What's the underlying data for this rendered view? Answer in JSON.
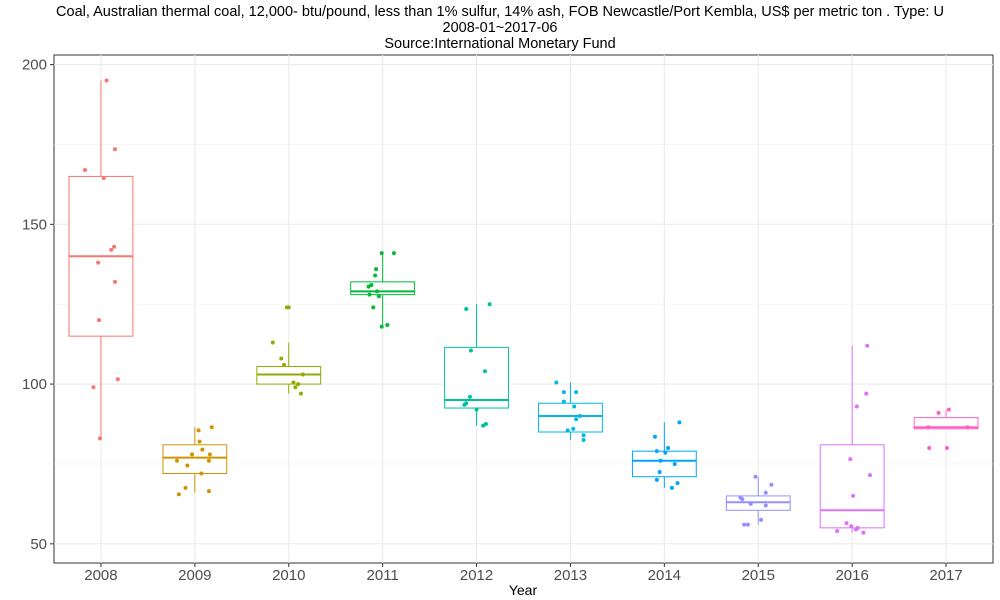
{
  "chart_data": {
    "type": "boxplot",
    "title": "Coal, Australian thermal coal, 12,000- btu/pound, less than 1% sulfur, 14% ash, FOB Newcastle/Port Kembla, US$ per metric ton . Type: U",
    "subtitle_line1": "2008-01~2017-06",
    "subtitle_line2": "Source:International Monetary Fund",
    "xlabel": "Year",
    "ylabel": "",
    "ylim": [
      44,
      203
    ],
    "yticks": [
      50,
      100,
      150,
      200
    ],
    "grid": true,
    "categories": [
      "2008",
      "2009",
      "2010",
      "2011",
      "2012",
      "2013",
      "2014",
      "2015",
      "2016",
      "2017"
    ],
    "colors": [
      "#F8766D",
      "#D39200",
      "#93AA00",
      "#00BA38",
      "#00C19F",
      "#00B9E3",
      "#00A5FF",
      "#9590FF",
      "#DB72FB",
      "#FF61C3"
    ],
    "boxes": [
      {
        "q1": 115,
        "median": 140,
        "q3": 165,
        "whisker_low": 83,
        "whisker_high": 195,
        "points": [
          [
            0.06,
            195
          ],
          [
            0.15,
            173.5
          ],
          [
            0.03,
            164.5
          ],
          [
            -0.17,
            167
          ],
          [
            0.14,
            143
          ],
          [
            0.11,
            142
          ],
          [
            -0.03,
            138
          ],
          [
            0.15,
            132
          ],
          [
            -0.02,
            120
          ],
          [
            0.18,
            101.5
          ],
          [
            -0.08,
            99
          ],
          [
            -0.01,
            83
          ]
        ]
      },
      {
        "q1": 72,
        "median": 77,
        "q3": 81,
        "whisker_low": 66,
        "whisker_high": 86.5,
        "points": [
          [
            0.18,
            86.5
          ],
          [
            0.04,
            85.5
          ],
          [
            0.05,
            82
          ],
          [
            -0.03,
            78
          ],
          [
            0.16,
            78
          ],
          [
            0.08,
            79.5
          ],
          [
            0.15,
            76
          ],
          [
            -0.19,
            76
          ],
          [
            -0.08,
            74.5
          ],
          [
            0.07,
            72
          ],
          [
            -0.1,
            67.5
          ],
          [
            -0.17,
            65.5
          ],
          [
            0.15,
            66.5
          ]
        ]
      },
      {
        "q1": 100,
        "median": 103,
        "q3": 105.5,
        "whisker_low": 97,
        "whisker_high": 113,
        "points": [
          [
            0.0,
            124
          ],
          [
            -0.02,
            124
          ],
          [
            -0.17,
            113
          ],
          [
            -0.08,
            108
          ],
          [
            -0.05,
            106
          ],
          [
            0.15,
            103
          ],
          [
            0.05,
            100.5
          ],
          [
            0.1,
            100
          ],
          [
            0.07,
            99
          ],
          [
            0.13,
            97
          ]
        ]
      },
      {
        "q1": 128,
        "median": 129,
        "q3": 132,
        "whisker_low": 118,
        "whisker_high": 141,
        "points": [
          [
            0.12,
            141
          ],
          [
            -0.01,
            141
          ],
          [
            -0.07,
            136
          ],
          [
            -0.08,
            134
          ],
          [
            -0.12,
            131
          ],
          [
            -0.15,
            130.5
          ],
          [
            -0.06,
            129
          ],
          [
            -0.14,
            128
          ],
          [
            -0.04,
            127.5
          ],
          [
            -0.1,
            124
          ],
          [
            -0.01,
            118
          ],
          [
            0.05,
            118.5
          ]
        ]
      },
      {
        "q1": 92.5,
        "median": 95,
        "q3": 111.5,
        "whisker_low": 87,
        "whisker_high": 125,
        "points": [
          [
            0.14,
            125
          ],
          [
            -0.11,
            123.5
          ],
          [
            -0.06,
            110.5
          ],
          [
            0.09,
            104
          ],
          [
            -0.11,
            94
          ],
          [
            -0.13,
            93.5
          ],
          [
            -0.07,
            96
          ],
          [
            0.0,
            92
          ],
          [
            0.1,
            87.5
          ],
          [
            0.07,
            87
          ]
        ]
      },
      {
        "q1": 85,
        "median": 90,
        "q3": 94,
        "whisker_low": 82.5,
        "whisker_high": 100.5,
        "points": [
          [
            -0.15,
            100.5
          ],
          [
            -0.07,
            97.5
          ],
          [
            0.06,
            97.5
          ],
          [
            -0.07,
            94.5
          ],
          [
            0.04,
            93
          ],
          [
            0.1,
            90
          ],
          [
            0.06,
            89
          ],
          [
            0.03,
            86
          ],
          [
            -0.03,
            85.5
          ],
          [
            0.14,
            84
          ],
          [
            0.14,
            82.5
          ]
        ]
      },
      {
        "q1": 71,
        "median": 76,
        "q3": 79,
        "whisker_low": 67.5,
        "whisker_high": 88,
        "points": [
          [
            0.16,
            88
          ],
          [
            -0.1,
            83.5
          ],
          [
            0.04,
            80
          ],
          [
            -0.08,
            79
          ],
          [
            0.01,
            78.5
          ],
          [
            -0.04,
            76
          ],
          [
            0.11,
            75
          ],
          [
            -0.05,
            72.5
          ],
          [
            0.14,
            69
          ],
          [
            -0.08,
            70
          ],
          [
            0.08,
            67.5
          ]
        ]
      },
      {
        "q1": 60.5,
        "median": 63,
        "q3": 65,
        "whisker_low": 56,
        "whisker_high": 71,
        "points": [
          [
            -0.03,
            71
          ],
          [
            0.14,
            68.5
          ],
          [
            0.08,
            66
          ],
          [
            -0.19,
            64.5
          ],
          [
            -0.17,
            64
          ],
          [
            -0.08,
            62.5
          ],
          [
            0.08,
            62
          ],
          [
            0.03,
            57.5
          ],
          [
            -0.15,
            56
          ],
          [
            -0.11,
            56
          ]
        ]
      },
      {
        "q1": 55,
        "median": 60.5,
        "q3": 81,
        "whisker_low": 53.5,
        "whisker_high": 112,
        "points": [
          [
            0.16,
            112
          ],
          [
            0.15,
            97
          ],
          [
            0.05,
            93
          ],
          [
            -0.02,
            76.5
          ],
          [
            0.19,
            71.5
          ],
          [
            0.01,
            65
          ],
          [
            -0.06,
            56.5
          ],
          [
            -0.01,
            55.5
          ],
          [
            0.06,
            55
          ],
          [
            0.04,
            54.5
          ],
          [
            0.12,
            53.5
          ],
          [
            -0.16,
            54
          ]
        ]
      },
      {
        "q1": 86,
        "median": 86.5,
        "q3": 89.5,
        "whisker_low": 86,
        "whisker_high": 92,
        "points": [
          [
            0.03,
            92
          ],
          [
            -0.08,
            91
          ],
          [
            -0.19,
            86.5
          ],
          [
            0.23,
            86.5
          ],
          [
            -0.18,
            80
          ],
          [
            0.01,
            80
          ]
        ]
      }
    ]
  }
}
